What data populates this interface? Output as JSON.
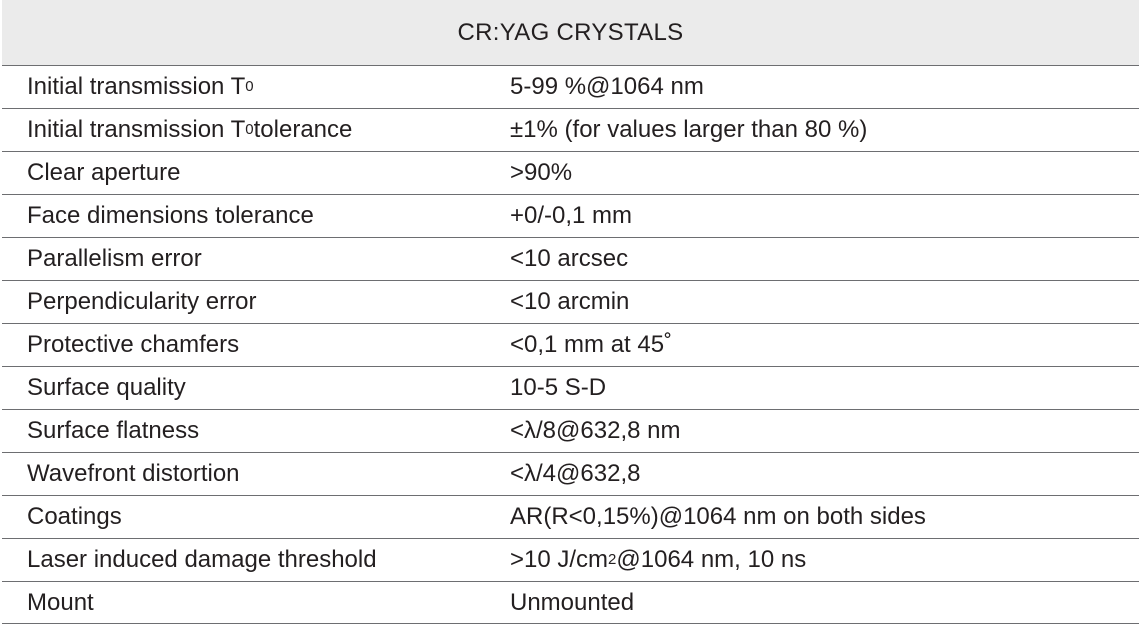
{
  "table": {
    "title": "CR:YAG CRYSTALS",
    "rows": [
      [
        [
          "Initial transmission T",
          {
            "sub": "0"
          }
        ],
        [
          "5-99 %@1064 nm"
        ]
      ],
      [
        [
          "Initial transmission T",
          {
            "sub": "0"
          },
          " tolerance"
        ],
        [
          "±1% (for values larger than 80 %)"
        ]
      ],
      [
        [
          "Clear aperture"
        ],
        [
          ">90%"
        ]
      ],
      [
        [
          "Face dimensions tolerance"
        ],
        [
          "+0/-0,1 mm"
        ]
      ],
      [
        [
          "Parallelism error"
        ],
        [
          "<10 arcsec"
        ]
      ],
      [
        [
          "Perpendicularity error"
        ],
        [
          "<10 arcmin"
        ]
      ],
      [
        [
          "Protective chamfers"
        ],
        [
          "<0,1 mm at 45˚"
        ]
      ],
      [
        [
          "Surface quality"
        ],
        [
          "10-5 S-D"
        ]
      ],
      [
        [
          "Surface flatness"
        ],
        [
          "<λ/8@632,8 nm"
        ]
      ],
      [
        [
          "Wavefront distortion"
        ],
        [
          "<λ/4@632,8"
        ]
      ],
      [
        [
          "Coatings"
        ],
        [
          "AR(R<0,15%)@1064 nm on both sides"
        ]
      ],
      [
        [
          "Laser induced damage threshold"
        ],
        [
          ">10 J/cm",
          {
            "sup": "2"
          },
          "@1064 nm, 10 ns"
        ]
      ],
      [
        [
          "Mount"
        ],
        [
          "Unmounted"
        ]
      ]
    ]
  }
}
